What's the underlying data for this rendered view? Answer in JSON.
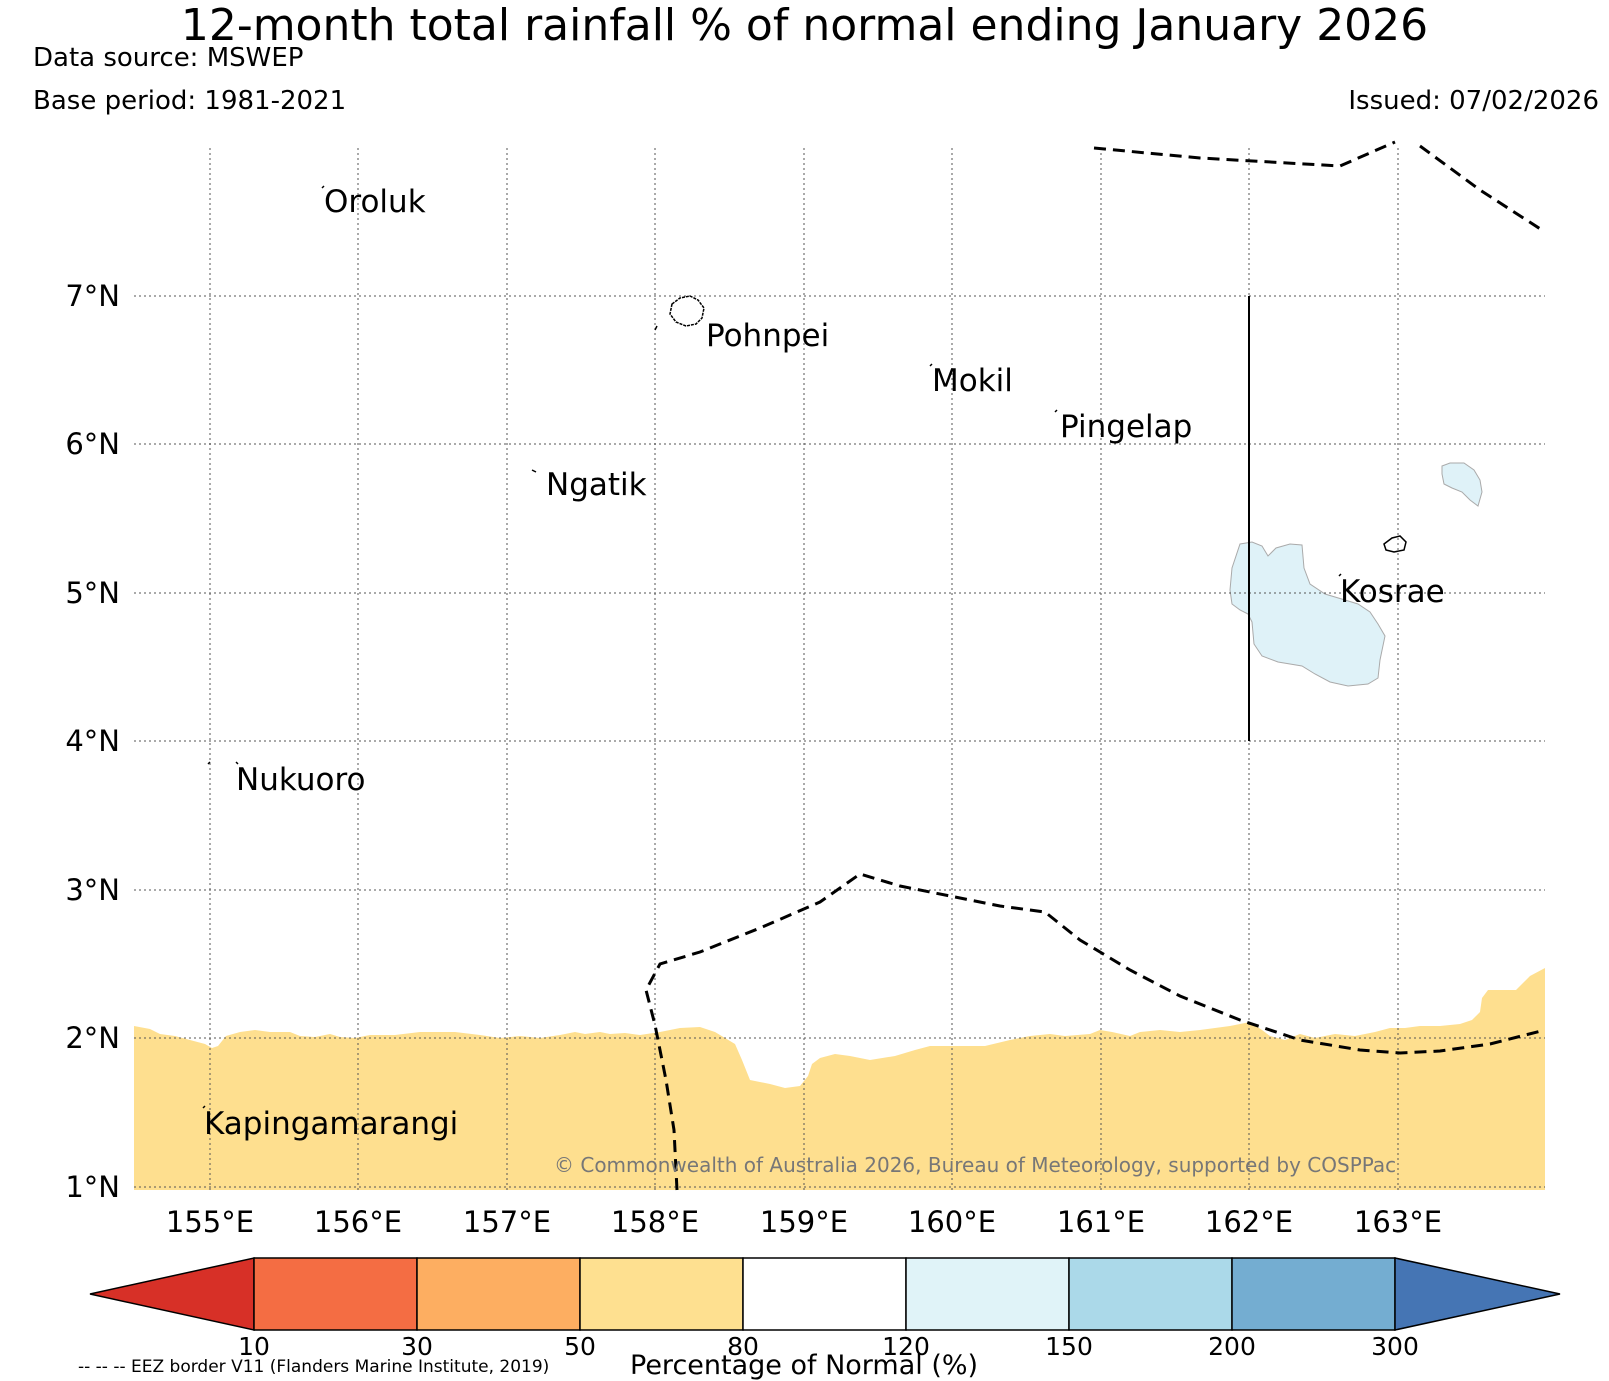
{
  "title": "12-month total rainfall % of normal ending January 2026",
  "data_source": "Data source: MSWEP",
  "base_period": "Base period: 1981-2021",
  "issued": "Issued: 07/02/2026",
  "map": {
    "lat_labels": [
      "7°N",
      "6°N",
      "5°N",
      "4°N",
      "3°N",
      "2°N",
      "1°N"
    ],
    "lon_labels": [
      "155°E",
      "156°E",
      "157°E",
      "158°E",
      "159°E",
      "160°E",
      "161°E",
      "162°E",
      "163°E"
    ],
    "places": [
      "Oroluk",
      "Pohnpei",
      "Mokil",
      "Pingelap",
      "Ngatik",
      "Kosrae",
      "Nukuoro",
      "Kapingamarangi"
    ],
    "credit": "© Commonwealth of Australia 2026, Bureau of Meteorology, supported by COSPPac",
    "regions": [
      {
        "category": "50-80",
        "color": "#fedf8f",
        "description": "southern band below ~2°N"
      },
      {
        "category": "120-150",
        "color": "#dff2f8",
        "description": "area west of Kosrae"
      }
    ]
  },
  "colorbar": {
    "title": "Percentage of Normal (%)",
    "tick_labels": [
      "10",
      "30",
      "50",
      "80",
      "120",
      "150",
      "200",
      "300"
    ],
    "colors": [
      "#d73027",
      "#f46d43",
      "#fdae61",
      "#fee090",
      "#ffffff",
      "#e0f3f8",
      "#abd9e9",
      "#74add1",
      "#4575b4"
    ]
  },
  "legend_note": "-- -- -- EEZ border V11 (Flanders Marine Institute, 2019)"
}
